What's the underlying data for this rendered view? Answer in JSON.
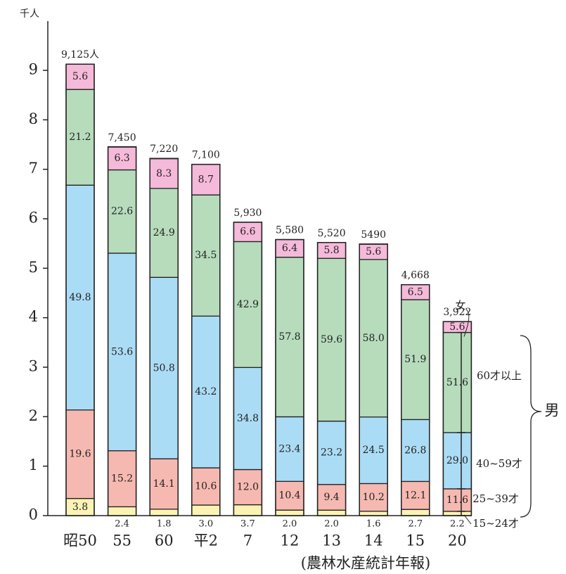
{
  "chart_data": {
    "type": "bar",
    "y_unit": "千人",
    "source": "(農林水産統計年報)",
    "male_label": "男",
    "categories": [
      "昭50",
      "55",
      "60",
      "平2",
      "7",
      "12",
      "13",
      "14",
      "15",
      "20"
    ],
    "totals": [
      9.125,
      7.45,
      7.22,
      7.1,
      5.93,
      5.58,
      5.52,
      5.49,
      4.668,
      3.922
    ],
    "total_labels": [
      "9,125人",
      "7,450",
      "7,220",
      "7,100",
      "5,930",
      "5,580",
      "5,520",
      "5490",
      "4,668",
      "3,922"
    ],
    "series": [
      {
        "name": "15~24才",
        "color": "#fbf3b3",
        "values": [
          3.8,
          2.4,
          1.8,
          3.0,
          3.7,
          2.0,
          2.0,
          1.6,
          2.7,
          2.2
        ],
        "value_labels": [
          "3.8",
          "2.4",
          "1.8",
          "3.0",
          "3.7",
          "2.0",
          "2.0",
          "1.6",
          "2.7",
          "2.2"
        ]
      },
      {
        "name": "25~39才",
        "color": "#f6b9b1",
        "values": [
          19.6,
          15.2,
          14.1,
          10.6,
          12.0,
          10.4,
          9.4,
          10.2,
          12.1,
          11.6
        ],
        "value_labels": [
          "19.6",
          "15.2",
          "14.1",
          "10.6",
          "12.0",
          "10.4",
          "9.4",
          "10.2",
          "12.1",
          "11.6"
        ]
      },
      {
        "name": "40~59才",
        "color": "#abdcf5",
        "values": [
          49.8,
          53.6,
          50.8,
          43.2,
          34.8,
          23.4,
          23.2,
          24.5,
          26.8,
          29.0
        ],
        "value_labels": [
          "49.8",
          "53.6",
          "50.8",
          "43.2",
          "34.8",
          "23.4",
          "23.2",
          "24.5",
          "26.8",
          "29.0"
        ]
      },
      {
        "name": "60才以上",
        "color": "#b6dcbc",
        "values": [
          21.2,
          22.6,
          24.9,
          34.5,
          42.9,
          57.8,
          59.6,
          58.0,
          51.9,
          51.6
        ],
        "value_labels": [
          "21.2",
          "22.6",
          "24.9",
          "34.5",
          "42.9",
          "57.8",
          "59.6",
          "58.0",
          "51.9",
          "51.6"
        ]
      },
      {
        "name": "女",
        "color": "#f5b9d9",
        "values": [
          5.6,
          6.3,
          8.3,
          8.7,
          6.6,
          6.4,
          5.8,
          5.6,
          6.5,
          5.6
        ],
        "value_labels": [
          "5.6",
          "6.3",
          "8.3",
          "8.7",
          "6.6",
          "6.4",
          "5.8",
          "5.6",
          "6.5",
          "5.6"
        ]
      }
    ],
    "ylim": [
      0,
      9.4
    ],
    "yticks": [
      0,
      1,
      2,
      3,
      4,
      5,
      6,
      7,
      8,
      9
    ]
  }
}
